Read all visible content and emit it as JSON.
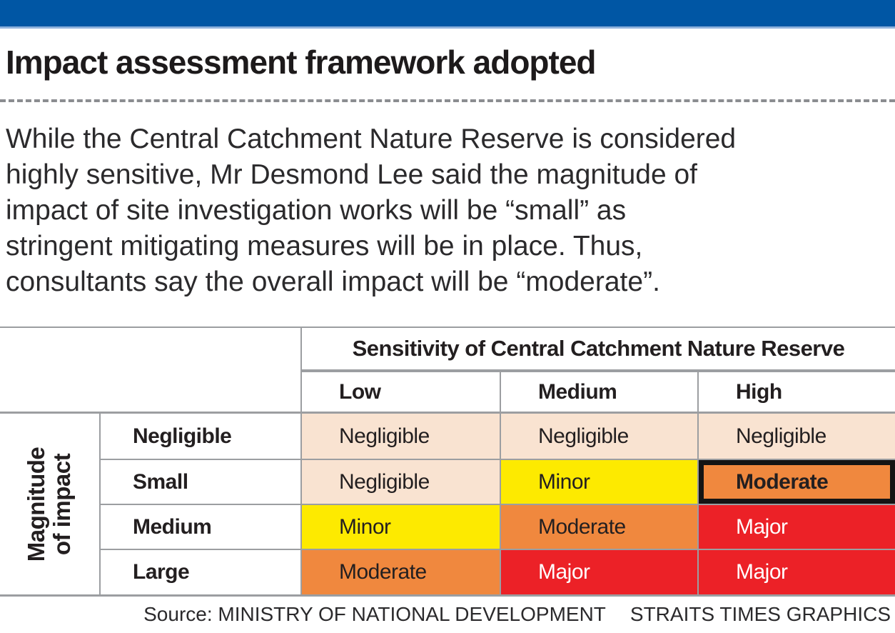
{
  "title": "Impact assessment framework adopted",
  "intro": {
    "lines": [
      "While the Central Catchment Nature Reserve is considered",
      "highly sensitive, Mr Desmond Lee said the magnitude of",
      "impact of site investigation works will be “small” as",
      "stringent mitigating measures will be in place. Thus,",
      "consultants say the overall impact will be “moderate”."
    ]
  },
  "chart_data": {
    "type": "table",
    "title": "Impact assessment framework adopted",
    "x_axis_label": "Sensitivity of Central Catchment Nature Reserve",
    "y_axis_label": "Magnitude of impact",
    "y_axis_label_lines": [
      "Magnitude",
      "of impact"
    ],
    "columns": [
      "Low",
      "Medium",
      "High"
    ],
    "rows": [
      "Negligible",
      "Small",
      "Medium",
      "Large"
    ],
    "values": [
      [
        "Negligible",
        "Negligible",
        "Negligible"
      ],
      [
        "Negligible",
        "Minor",
        "Moderate"
      ],
      [
        "Minor",
        "Moderate",
        "Major"
      ],
      [
        "Moderate",
        "Major",
        "Major"
      ]
    ],
    "highlighted_cell": {
      "row": "Small",
      "column": "High",
      "value": "Moderate"
    }
  },
  "legend_colors": {
    "Negligible": "#f9e3d1",
    "Minor": "#fdea00",
    "Moderate": "#f0883e",
    "Major": "#ec2127"
  },
  "colors": {
    "accent_bar": "#0056a4",
    "accent_bar_edge": "#8fb2dc",
    "grid_line": "#9c9ea1",
    "text": "#231f20",
    "highlight_border": "#141414",
    "major_text": "#ffffff"
  },
  "footer": {
    "source": "Source: MINISTRY OF NATIONAL DEVELOPMENT",
    "credit": "STRAITS TIMES GRAPHICS"
  }
}
